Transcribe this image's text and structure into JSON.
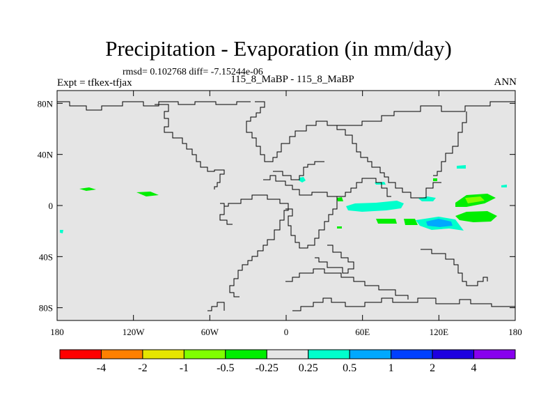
{
  "title": "Precipitation - Evaporation (in mm/day)",
  "stats": "rmsd= 0.102768  diff= -7.15244e-06",
  "left_label": "Expt = tfkex-tfjax",
  "center_label": "115_8_MaBP - 115_8_MaBP",
  "right_label": "ANN",
  "axes": {
    "x_ticks": [
      "180",
      "120W",
      "60W",
      "0",
      "60E",
      "120E",
      "180"
    ],
    "y_ticks": [
      "80N",
      "40N",
      "0",
      "40S",
      "80S"
    ],
    "x_range": [
      -180,
      180
    ],
    "y_range": [
      -90,
      90
    ]
  },
  "colorbar": {
    "labels": [
      "-4",
      "-2",
      "-1",
      "-0.5",
      "-0.25",
      "0.25",
      "0.5",
      "1",
      "2",
      "4"
    ],
    "colors": [
      "#ff0000",
      "#ff8000",
      "#e5e500",
      "#80ff00",
      "#00ee00",
      "#e5e5e5",
      "#00ffcc",
      "#00a8ff",
      "#0040ff",
      "#1e00e0",
      "#8800ee"
    ]
  },
  "colors": {
    "map_background": "#e5e5e5",
    "coastline": "#000000"
  }
}
